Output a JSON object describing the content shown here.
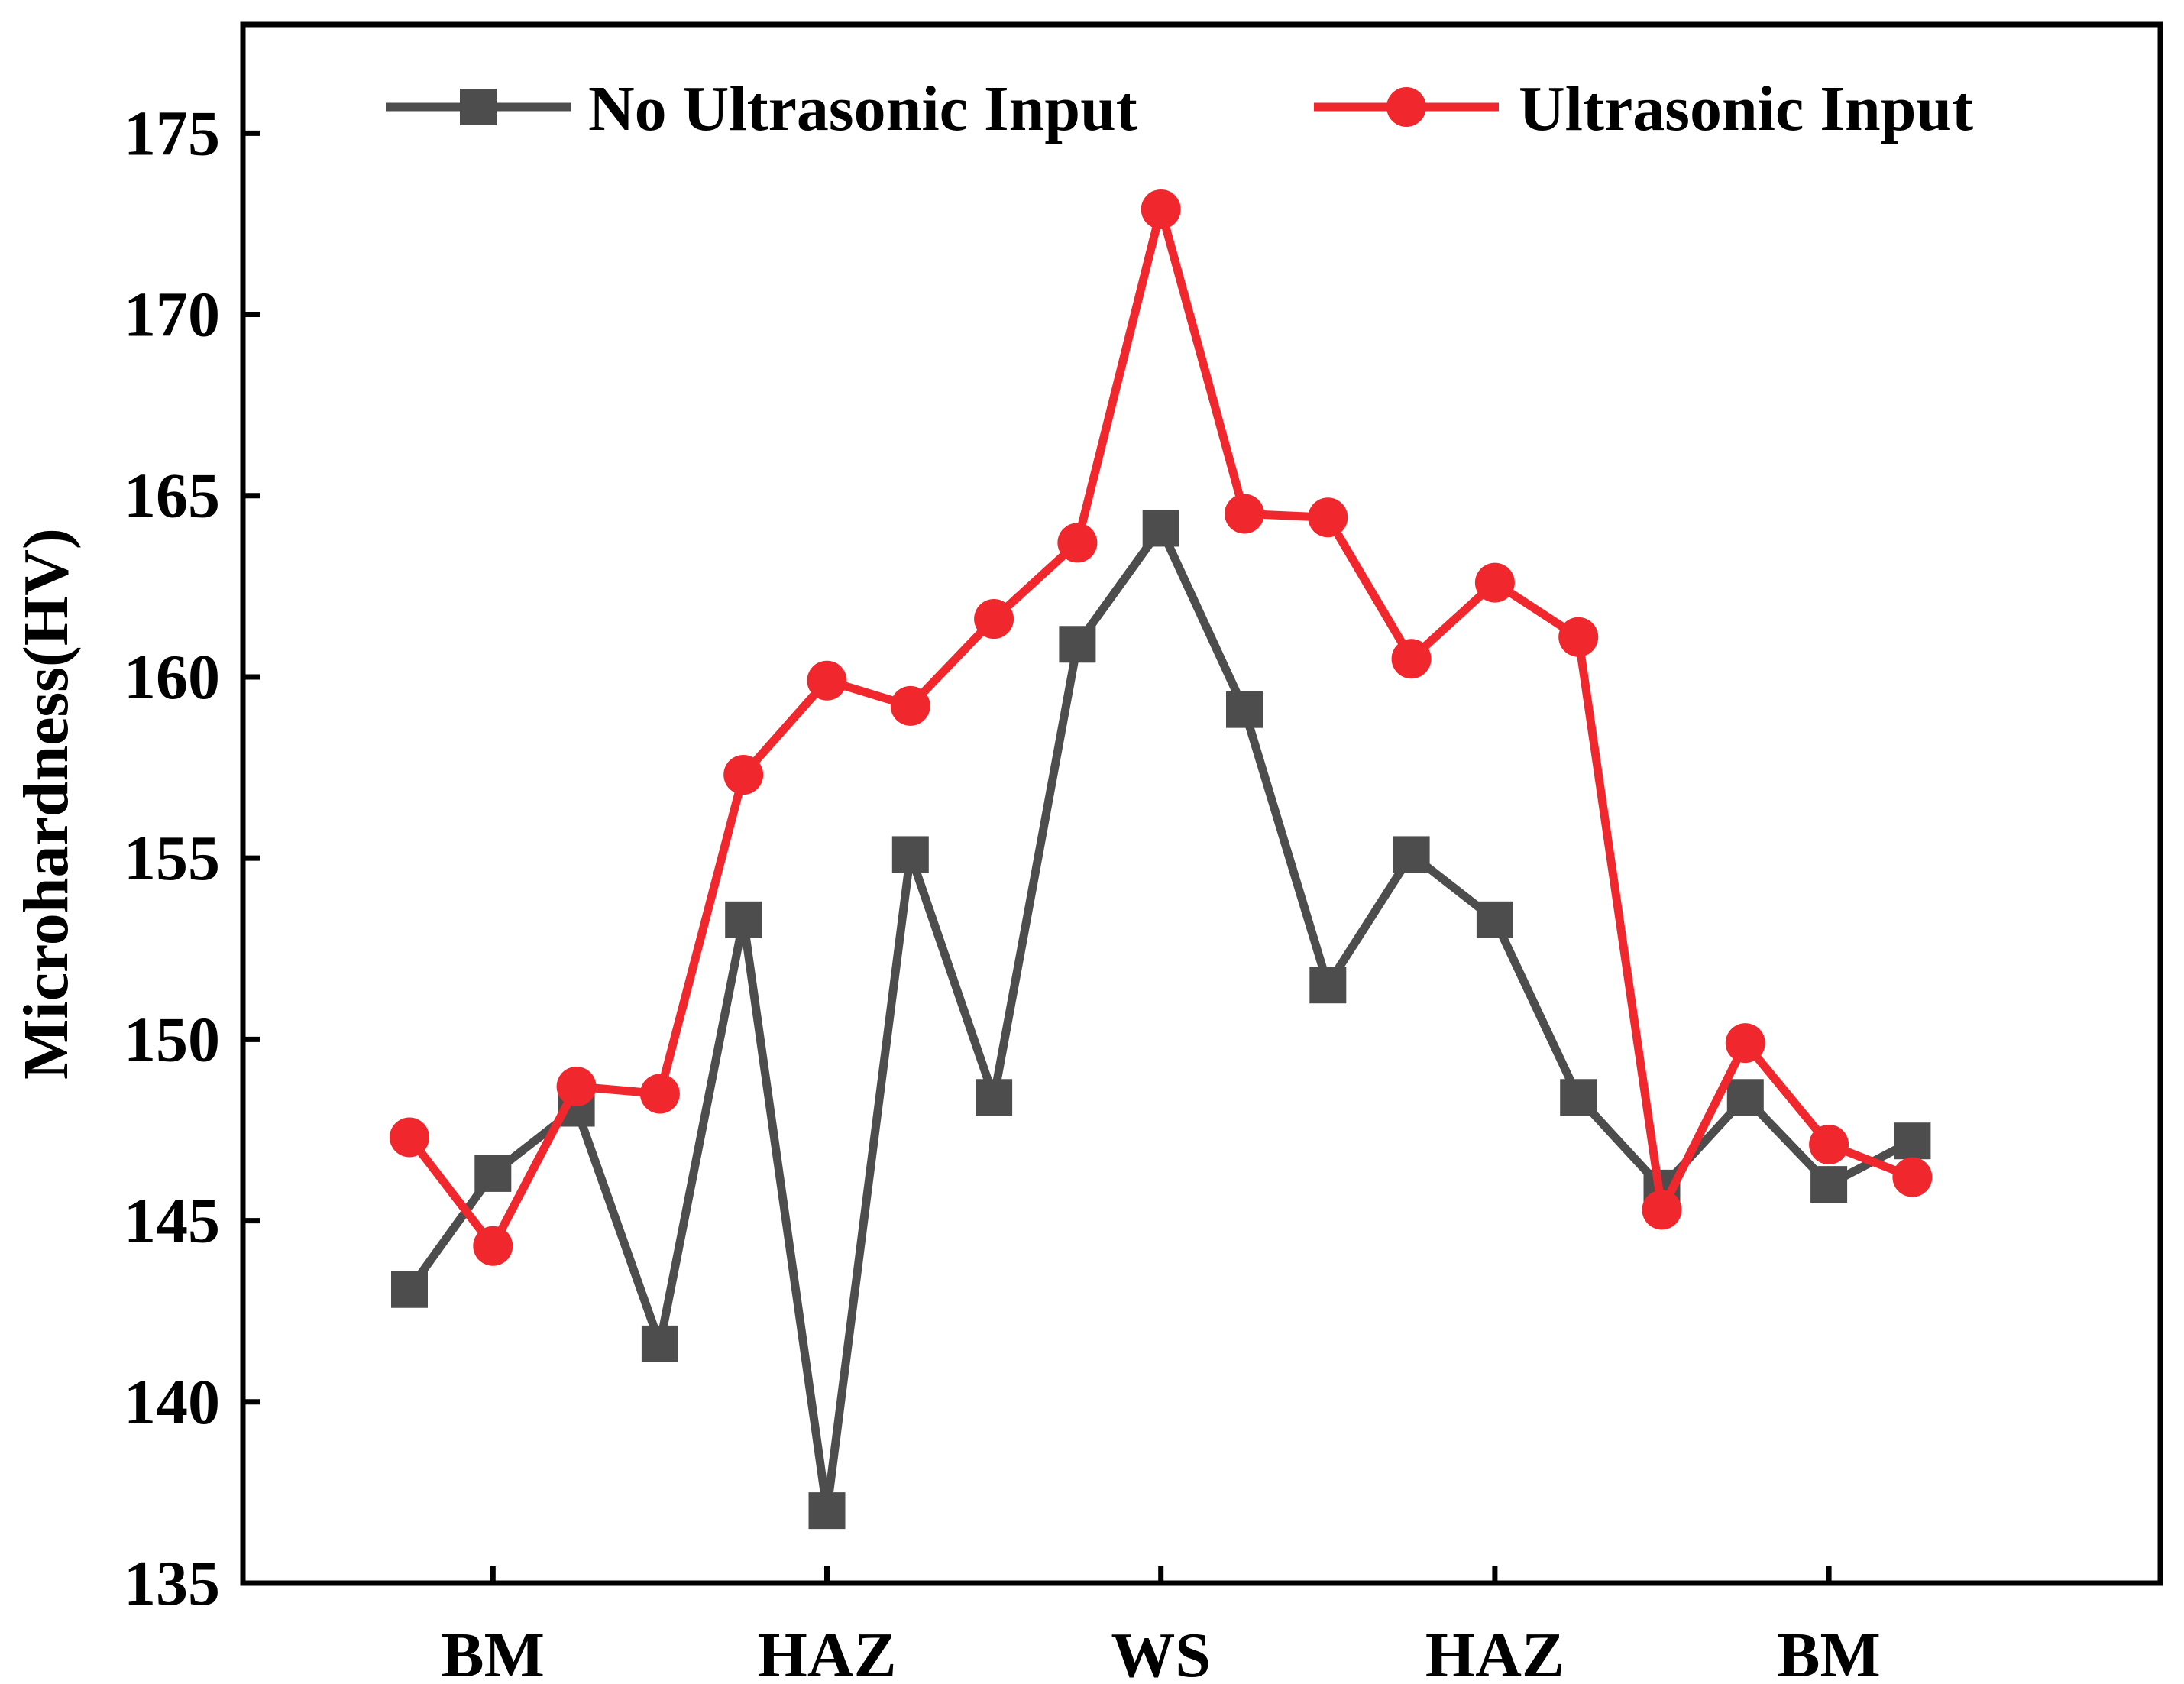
{
  "chart_data": {
    "type": "line",
    "title": "",
    "xlabel": "",
    "ylabel": "Microhardness(HV)",
    "ylim": [
      135,
      178
    ],
    "yticks": [
      135,
      140,
      145,
      150,
      155,
      160,
      165,
      170,
      175
    ],
    "x_positions": 19,
    "category_labels": [
      {
        "label": "BM",
        "pos": 1
      },
      {
        "label": "HAZ",
        "pos": 5
      },
      {
        "label": "WS",
        "pos": 9
      },
      {
        "label": "HAZ",
        "pos": 13
      },
      {
        "label": "BM",
        "pos": 17
      }
    ],
    "legend_position": "top",
    "grid": false,
    "series": [
      {
        "name": "No Ultrasonic Input",
        "color": "#4d4d4d",
        "marker": "square",
        "values": [
          143.1,
          146.3,
          148.1,
          141.6,
          153.3,
          137.0,
          155.1,
          148.4,
          160.9,
          164.1,
          159.1,
          151.5,
          155.1,
          153.3,
          148.4,
          145.9,
          148.4,
          146.0,
          147.2
        ]
      },
      {
        "name": "Ultrasonic Input",
        "color": "#f0282d",
        "marker": "circle",
        "values": [
          147.3,
          144.3,
          148.7,
          148.5,
          157.3,
          159.9,
          159.2,
          161.6,
          163.7,
          172.9,
          164.5,
          164.4,
          160.5,
          162.6,
          161.1,
          145.3,
          149.9,
          147.1,
          146.2
        ]
      }
    ]
  }
}
